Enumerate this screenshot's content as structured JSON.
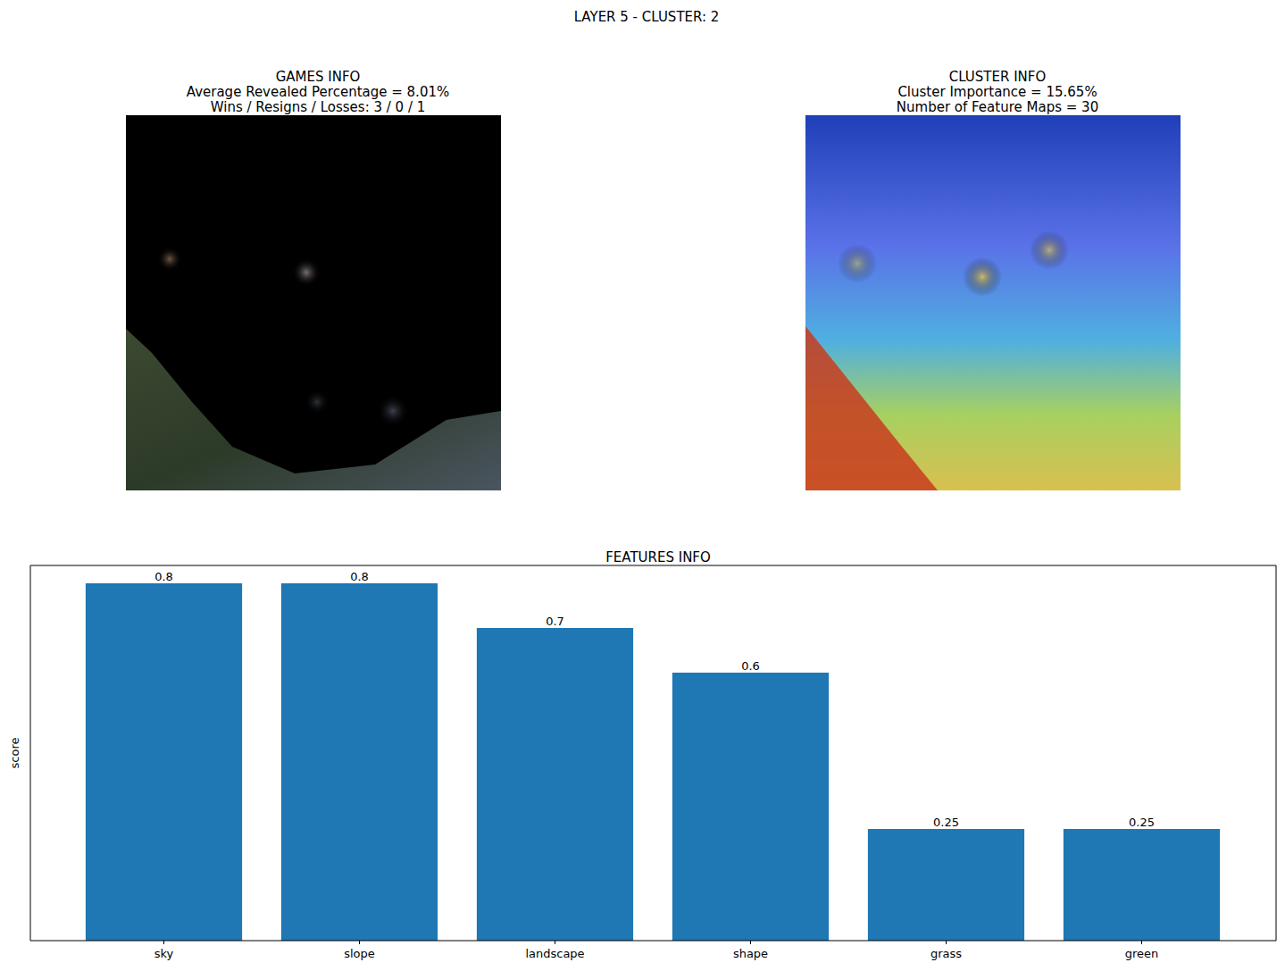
{
  "title": "LAYER 5 - CLUSTER: 2",
  "panels": [
    {
      "title": [
        "GAMES INFO",
        "Average Revealed Percentage = 8.01%",
        "Wins / Resigns / Losses: 3 / 0 / 1"
      ]
    },
    {
      "title": [
        "CLUSTER INFO",
        "Cluster Importance = 15.65%",
        "Number of Feature Maps = 30"
      ]
    }
  ],
  "chart_data": {
    "type": "bar",
    "title": "FEATURES INFO",
    "y_label": "score",
    "categories": [
      "sky",
      "slope",
      "landscape",
      "shape",
      "grass",
      "green"
    ],
    "values": [
      0.8,
      0.8,
      0.7,
      0.6,
      0.25,
      0.25
    ],
    "color": "#1f77b4",
    "ylim": [
      0,
      0.84
    ],
    "data_labels": true,
    "tick_labels": "x"
  }
}
